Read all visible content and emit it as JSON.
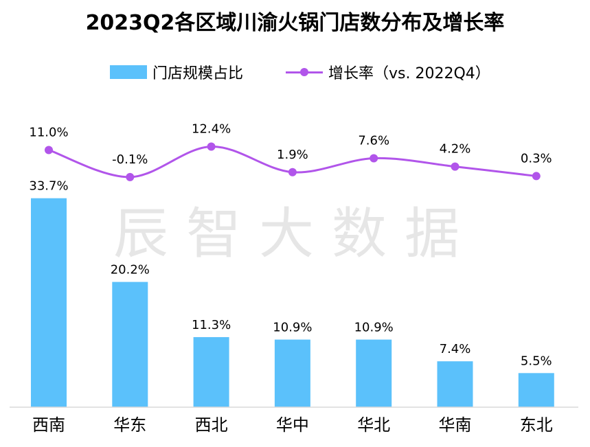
{
  "chart_data": {
    "type": "bar",
    "title": "2023Q2各区域川渝火锅门店数分布及增长率",
    "categories": [
      "西南",
      "华东",
      "西北",
      "华中",
      "华北",
      "华南",
      "东北"
    ],
    "series": [
      {
        "name": "门店规模占比",
        "type": "bar",
        "values": [
          33.7,
          20.2,
          11.3,
          10.9,
          10.9,
          7.4,
          5.5
        ],
        "labels": [
          "33.7%",
          "20.2%",
          "11.3%",
          "10.9%",
          "10.9%",
          "7.4%",
          "5.5%"
        ],
        "color": "#5bc1fb"
      },
      {
        "name": "增长率（vs. 2022Q4）",
        "type": "line",
        "values": [
          11.0,
          -0.1,
          12.4,
          1.9,
          7.6,
          4.2,
          0.3
        ],
        "labels": [
          "11.0%",
          "-0.1%",
          "12.4%",
          "1.9%",
          "7.6%",
          "4.2%",
          "0.3%"
        ],
        "color": "#b155ea"
      }
    ],
    "legend": "top-center",
    "grid": false,
    "watermark": "辰智大数据"
  }
}
